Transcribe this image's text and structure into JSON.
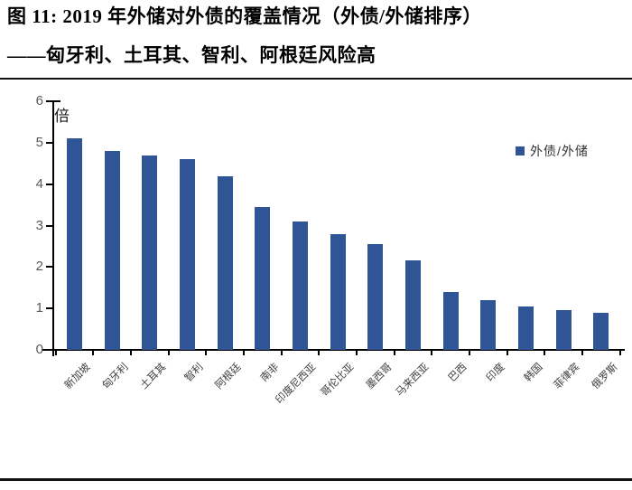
{
  "figure": {
    "title_line1": "图 11: 2019 年外储对外债的覆盖情况（外债/外储排序）",
    "title_line2": "——匈牙利、土耳其、智利、阿根廷风险高"
  },
  "chart_data": {
    "type": "bar",
    "title": "图 11: 2019 年外储对外债的覆盖情况（外债/外储排序）——匈牙利、土耳其、智利、阿根廷风险高",
    "unit_label": "倍",
    "legend_entries": [
      "外债/外储"
    ],
    "legend_position": "top-right",
    "categories": [
      "新加坡",
      "匈牙利",
      "土耳其",
      "智利",
      "阿根廷",
      "南非",
      "印度尼西亚",
      "哥伦比亚",
      "墨西哥",
      "马来西亚",
      "巴西",
      "印度",
      "韩国",
      "菲律宾",
      "俄罗斯"
    ],
    "series": [
      {
        "name": "外债/外储",
        "values": [
          5.1,
          4.8,
          4.7,
          4.6,
          4.2,
          3.45,
          3.1,
          2.8,
          2.55,
          2.15,
          1.4,
          1.2,
          1.05,
          0.95,
          0.9
        ]
      }
    ],
    "xlabel": "",
    "ylabel": "倍",
    "ylim": [
      0,
      6
    ],
    "yticks": [
      0,
      1,
      2,
      3,
      4,
      5,
      6
    ],
    "grid": false,
    "bar_color": "#2F5597",
    "axis_color": "#000000",
    "tick_label_color": "#595959"
  }
}
